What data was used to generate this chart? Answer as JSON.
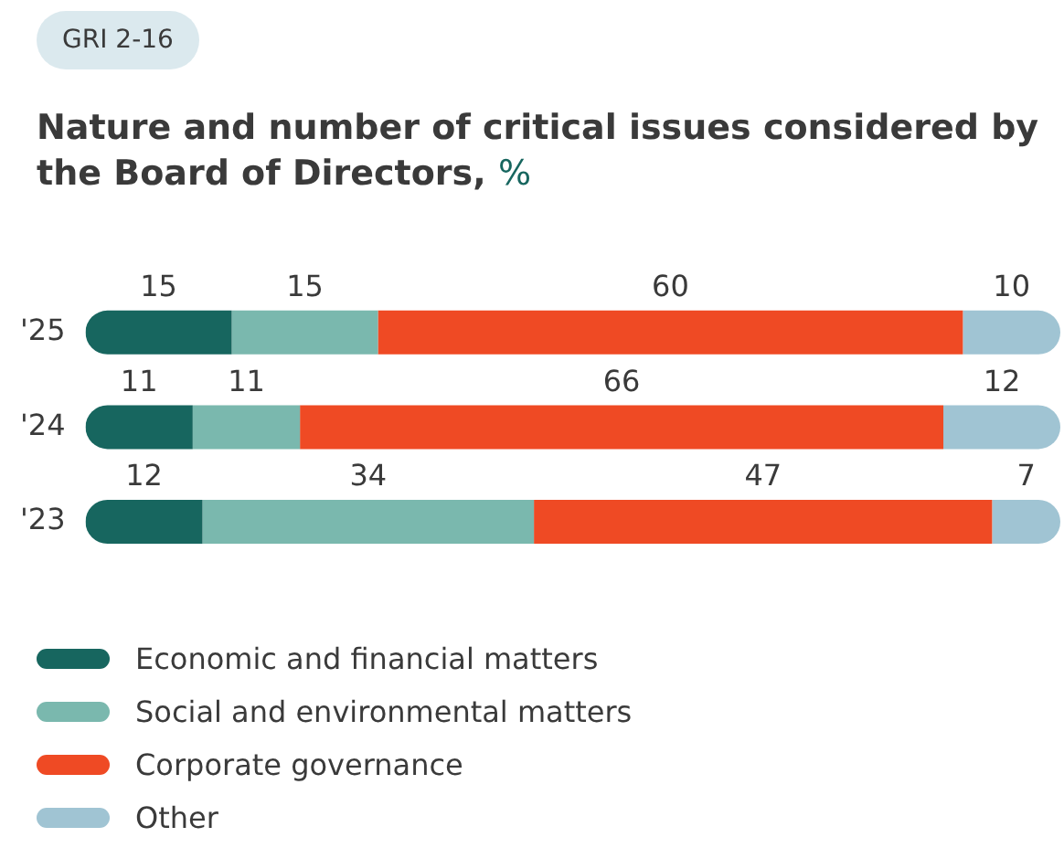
{
  "chart_data": {
    "type": "bar",
    "orientation": "horizontal",
    "stacked": true,
    "title": "Nature and number of critical issues considered by the Board of Directors, %",
    "annotations": [
      "GRI 2-16"
    ],
    "categories": [
      "'25",
      "'24",
      "'23"
    ],
    "data_labels": true,
    "legend": "bottom",
    "series": [
      {
        "name": "Economic and financial matters",
        "color": "#17665f",
        "values": [
          15,
          11,
          12
        ]
      },
      {
        "name": "Social and environmental matters",
        "color": "#7ab8ae",
        "values": [
          15,
          11,
          34
        ]
      },
      {
        "name": "Corporate governance",
        "color": "#ef4a24",
        "values": [
          60,
          66,
          47
        ]
      },
      {
        "name": "Other",
        "color": "#a0c4d3",
        "values": [
          10,
          12,
          7
        ]
      }
    ]
  }
}
